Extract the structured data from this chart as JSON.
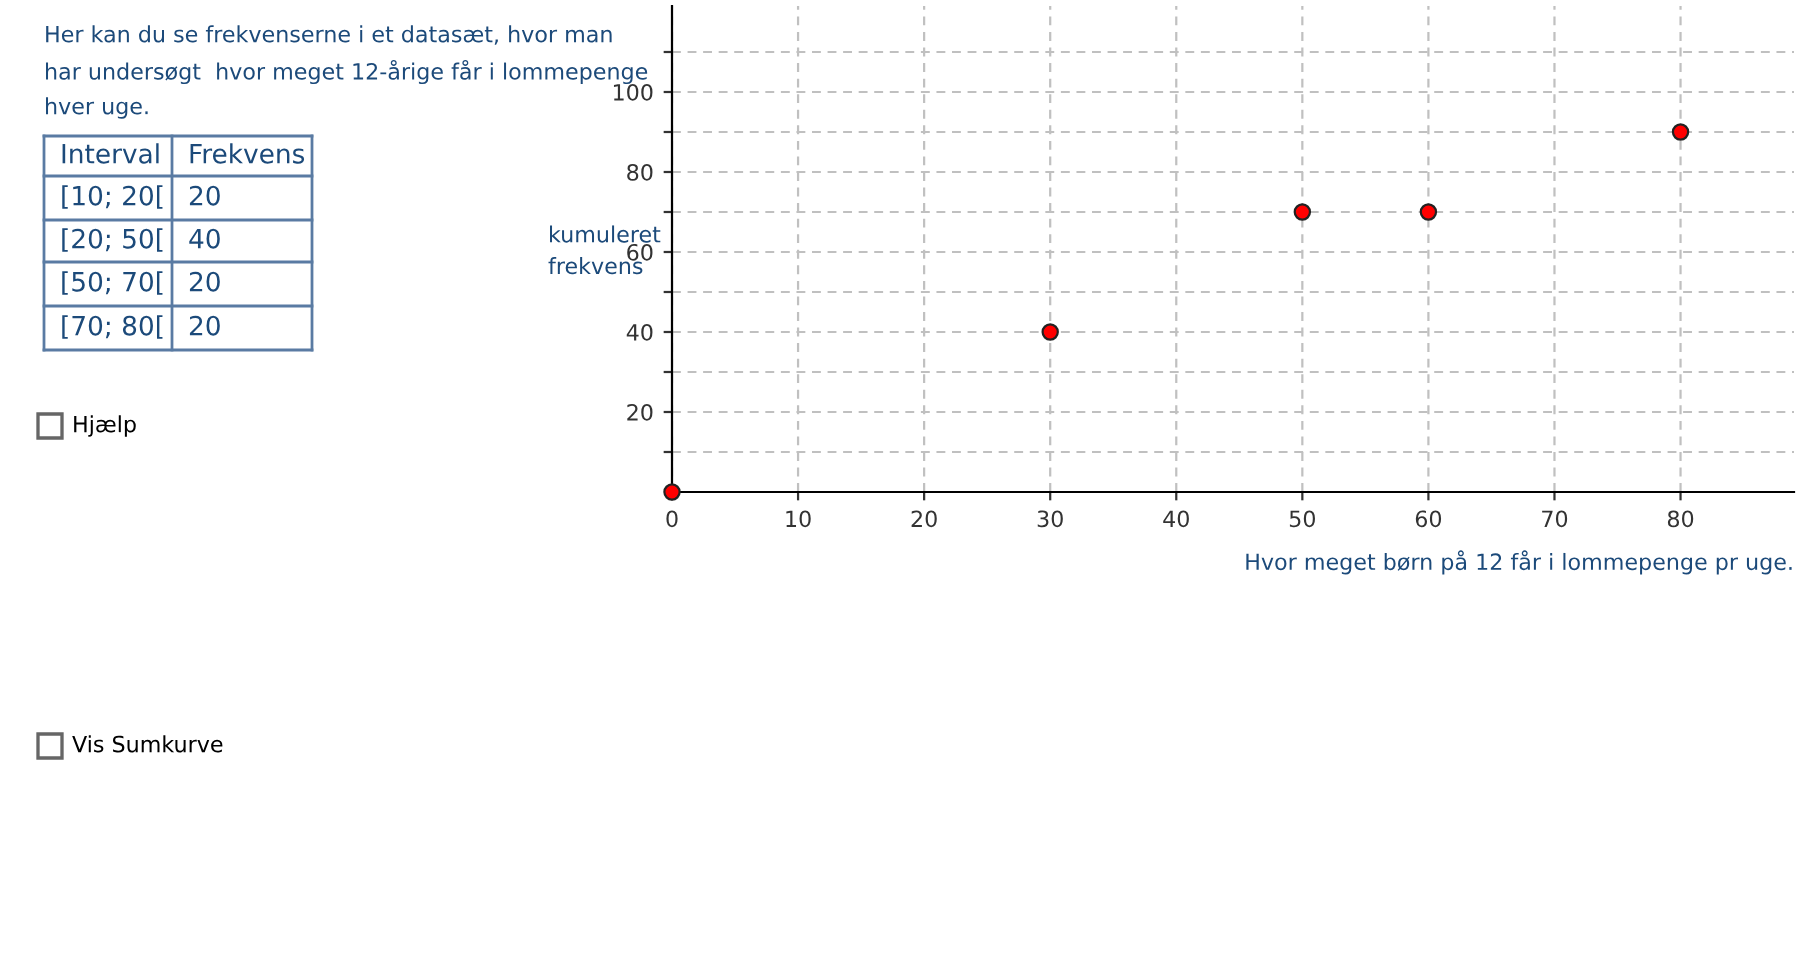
{
  "chart_data": {
    "type": "scatter",
    "xlabel": "Hvor meget børn på 12 får i lommepenge pr uge.",
    "ylabel": "kumuleret\nfrekvens",
    "x": [
      0,
      30,
      50,
      60,
      80
    ],
    "values": [
      0,
      40,
      70,
      70,
      90
    ],
    "color": "#ff0000",
    "marker": "circle",
    "xlim": [
      0,
      89
    ],
    "ylim": [
      0,
      121.5
    ],
    "xticks": [
      0,
      10,
      20,
      30,
      40,
      50,
      60,
      70,
      80
    ],
    "yticks": [
      {
        "value": 10,
        "label": null
      },
      20,
      {
        "value": 30,
        "label": null
      },
      40,
      {
        "value": 50,
        "label": null
      },
      60,
      {
        "value": 70,
        "label": null
      },
      80,
      {
        "value": 90,
        "label": null
      },
      100,
      {
        "value": 110,
        "label": null
      }
    ],
    "grid": true,
    "annotations": [
      "Her kan du se frekvenserne i et datasæt, hvor man",
      "har undersøgt  hvor meget 12-årige får i lommepenge",
      "hver uge.",
      "Interval",
      "Frekvens",
      "[10; 20[",
      "20",
      "[20; 50[",
      "40",
      "[50; 70[",
      "20",
      "[70; 80[",
      "20",
      "Hjælp",
      "Vis Sumkurve"
    ]
  }
}
